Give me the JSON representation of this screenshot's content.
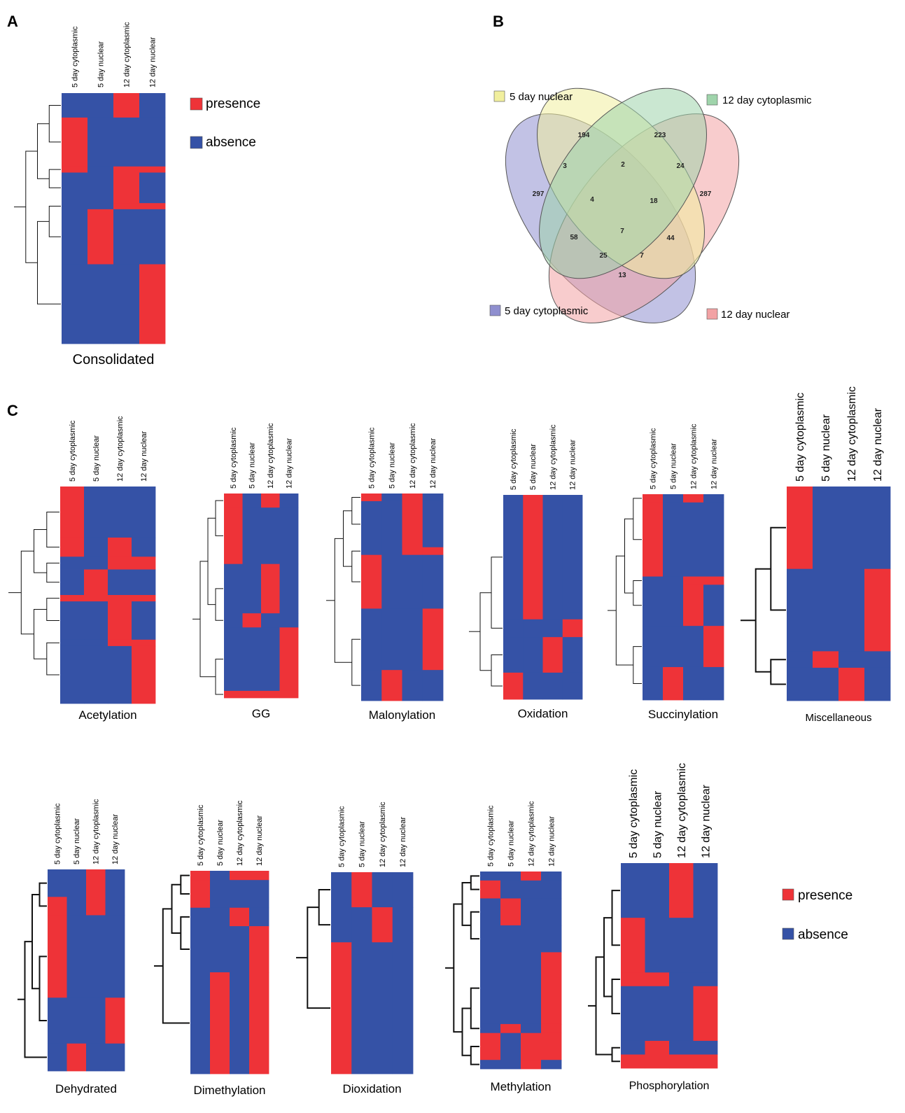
{
  "colors": {
    "presence": "#ee3338",
    "absence": "#3552a6",
    "venn_5day_cyto": "#8f8fcf",
    "venn_5day_nuc": "#f1ef9e",
    "venn_12day_cyto": "#9fd4ab",
    "venn_12day_nuc": "#f2a2a4"
  },
  "panels": {
    "A": "A",
    "B": "B",
    "C": "C"
  },
  "legend_top": {
    "presence": "presence",
    "absence": "absence"
  },
  "legend_bottom": {
    "presence": "presence",
    "absence": "absence"
  },
  "chart_data": [
    {
      "id": "consolidated",
      "type": "heatmap",
      "title": "Consolidated",
      "columns": [
        "5 day cytoplasmic",
        "5 day nuclear",
        "12 day cytoplasmic",
        "12 day nuclear"
      ],
      "blocks": [
        {
          "rows": 4,
          "values": [
            0,
            0,
            1,
            0
          ]
        },
        {
          "rows": 8,
          "values": [
            1,
            0,
            0,
            0
          ]
        },
        {
          "rows": 1,
          "values": [
            1,
            0,
            1,
            1
          ]
        },
        {
          "rows": 5,
          "values": [
            0,
            0,
            1,
            0
          ]
        },
        {
          "rows": 1,
          "values": [
            0,
            0,
            1,
            1
          ]
        },
        {
          "rows": 9,
          "values": [
            0,
            1,
            0,
            0
          ]
        },
        {
          "rows": 13,
          "values": [
            0,
            0,
            0,
            1
          ]
        }
      ]
    },
    {
      "id": "venn",
      "type": "venn",
      "sets": [
        "5 day cytoplasmic",
        "5 day nuclear",
        "12 day cytoplasmic",
        "12 day nuclear"
      ],
      "regions": [
        {
          "sets": [
            "5 day cytoplasmic"
          ],
          "value": 297
        },
        {
          "sets": [
            "5 day nuclear"
          ],
          "value": 194
        },
        {
          "sets": [
            "12 day cytoplasmic"
          ],
          "value": 223
        },
        {
          "sets": [
            "12 day nuclear"
          ],
          "value": 287
        },
        {
          "sets": [
            "5 day cytoplasmic",
            "5 day nuclear"
          ],
          "value": 3
        },
        {
          "sets": [
            "5 day nuclear",
            "12 day cytoplasmic"
          ],
          "value": 2
        },
        {
          "sets": [
            "12 day cytoplasmic",
            "12 day nuclear"
          ],
          "value": 24
        },
        {
          "sets": [
            "5 day cytoplasmic",
            "5 day nuclear",
            "12 day cytoplasmic"
          ],
          "value": 4
        },
        {
          "sets": [
            "5 day nuclear",
            "12 day cytoplasmic",
            "12 day nuclear"
          ],
          "value": 18
        },
        {
          "sets": [
            "5 day cytoplasmic",
            "5 day nuclear",
            "12 day cytoplasmic",
            "12 day nuclear"
          ],
          "value": 7
        },
        {
          "sets": [
            "5 day cytoplasmic",
            "12 day cytoplasmic"
          ],
          "value": 58
        },
        {
          "sets": [
            "5 day nuclear",
            "12 day nuclear"
          ],
          "value": 44
        },
        {
          "sets": [
            "5 day cytoplasmic",
            "12 day cytoplasmic",
            "12 day nuclear"
          ],
          "value": 25
        },
        {
          "sets": [
            "5 day cytoplasmic",
            "5 day nuclear",
            "12 day nuclear"
          ],
          "value": 7
        },
        {
          "sets": [
            "5 day cytoplasmic",
            "12 day nuclear"
          ],
          "value": 13
        }
      ]
    },
    {
      "id": "acetylation",
      "type": "heatmap",
      "title": "Acetylation",
      "columns": [
        "5 day cytoplasmic",
        "5 day nuclear",
        "12 day cytoplasmic",
        "12 day nuclear"
      ],
      "blocks": [
        {
          "rows": 8,
          "values": [
            1,
            0,
            0,
            0
          ]
        },
        {
          "rows": 3,
          "values": [
            1,
            0,
            1,
            0
          ]
        },
        {
          "rows": 2,
          "values": [
            0,
            0,
            1,
            1
          ]
        },
        {
          "rows": 4,
          "values": [
            0,
            1,
            0,
            0
          ]
        },
        {
          "rows": 1,
          "values": [
            1,
            1,
            1,
            1
          ]
        },
        {
          "rows": 6,
          "values": [
            0,
            0,
            1,
            0
          ]
        },
        {
          "rows": 1,
          "values": [
            0,
            0,
            1,
            1
          ]
        },
        {
          "rows": 9,
          "values": [
            0,
            0,
            0,
            1
          ]
        }
      ]
    },
    {
      "id": "gg",
      "type": "heatmap",
      "title": "GG",
      "columns": [
        "5 day cytoplasmic",
        "5 day nuclear",
        "12 day cytoplasmic",
        "12 day nuclear"
      ],
      "blocks": [
        {
          "rows": 2,
          "values": [
            1,
            0,
            1,
            0
          ]
        },
        {
          "rows": 8,
          "values": [
            1,
            0,
            0,
            0
          ]
        },
        {
          "rows": 7,
          "values": [
            0,
            0,
            1,
            0
          ]
        },
        {
          "rows": 2,
          "values": [
            0,
            1,
            0,
            0
          ]
        },
        {
          "rows": 9,
          "values": [
            0,
            0,
            0,
            1
          ]
        },
        {
          "rows": 1,
          "values": [
            1,
            1,
            1,
            1
          ]
        }
      ]
    },
    {
      "id": "malonylation",
      "type": "heatmap",
      "title": "Malonylation",
      "columns": [
        "5 day cytoplasmic",
        "5 day nuclear",
        "12 day cytoplasmic",
        "12 day nuclear"
      ],
      "blocks": [
        {
          "rows": 1,
          "values": [
            1,
            0,
            1,
            0
          ]
        },
        {
          "rows": 6,
          "values": [
            0,
            0,
            1,
            0
          ]
        },
        {
          "rows": 1,
          "values": [
            0,
            0,
            1,
            1
          ]
        },
        {
          "rows": 7,
          "values": [
            1,
            0,
            0,
            0
          ]
        },
        {
          "rows": 8,
          "values": [
            0,
            0,
            0,
            1
          ]
        },
        {
          "rows": 4,
          "values": [
            0,
            1,
            0,
            0
          ]
        }
      ]
    },
    {
      "id": "oxidation",
      "type": "heatmap",
      "title": "Oxidation",
      "columns": [
        "5 day cytoplasmic",
        "5 day nuclear",
        "12 day cytoplasmic",
        "12 day nuclear"
      ],
      "blocks": [
        {
          "rows": 14,
          "values": [
            0,
            1,
            0,
            0
          ]
        },
        {
          "rows": 2,
          "values": [
            0,
            0,
            0,
            1
          ]
        },
        {
          "rows": 4,
          "values": [
            0,
            0,
            1,
            0
          ]
        },
        {
          "rows": 3,
          "values": [
            1,
            0,
            0,
            0
          ]
        }
      ]
    },
    {
      "id": "succinylation",
      "type": "heatmap",
      "title": "Succinylation",
      "columns": [
        "5 day cytoplasmic",
        "5 day nuclear",
        "12 day cytoplasmic",
        "12 day nuclear"
      ],
      "blocks": [
        {
          "rows": 1,
          "values": [
            1,
            0,
            1,
            0
          ]
        },
        {
          "rows": 9,
          "values": [
            1,
            0,
            0,
            0
          ]
        },
        {
          "rows": 1,
          "values": [
            0,
            0,
            1,
            1
          ]
        },
        {
          "rows": 5,
          "values": [
            0,
            0,
            1,
            0
          ]
        },
        {
          "rows": 5,
          "values": [
            0,
            0,
            0,
            1
          ]
        },
        {
          "rows": 4,
          "values": [
            0,
            1,
            0,
            0
          ]
        }
      ]
    },
    {
      "id": "miscellaneous",
      "type": "heatmap",
      "title": "Miscellaneous",
      "columns": [
        "5 day cytoplasmic",
        "5 day nuclear",
        "12 day cytoplasmic",
        "12 day nuclear"
      ],
      "blocks": [
        {
          "rows": 5,
          "values": [
            1,
            0,
            0,
            0
          ]
        },
        {
          "rows": 5,
          "values": [
            0,
            0,
            0,
            1
          ]
        },
        {
          "rows": 1,
          "values": [
            0,
            1,
            0,
            0
          ]
        },
        {
          "rows": 2,
          "values": [
            0,
            0,
            1,
            0
          ]
        }
      ]
    },
    {
      "id": "dehydrated",
      "type": "heatmap",
      "title": "Dehydrated",
      "columns": [
        "5 day cytoplasmic",
        "5 day nuclear",
        "12 day cytoplasmic",
        "12 day nuclear"
      ],
      "blocks": [
        {
          "rows": 3,
          "values": [
            0,
            0,
            1,
            0
          ]
        },
        {
          "rows": 2,
          "values": [
            1,
            0,
            1,
            0
          ]
        },
        {
          "rows": 9,
          "values": [
            1,
            0,
            0,
            0
          ]
        },
        {
          "rows": 5,
          "values": [
            0,
            0,
            0,
            1
          ]
        },
        {
          "rows": 3,
          "values": [
            0,
            1,
            0,
            0
          ]
        }
      ]
    },
    {
      "id": "dimethylation",
      "type": "heatmap",
      "title": "Dimethylation",
      "columns": [
        "5 day cytoplasmic",
        "5 day nuclear",
        "12 day cytoplasmic",
        "12 day nuclear"
      ],
      "blocks": [
        {
          "rows": 1,
          "values": [
            1,
            0,
            1,
            1
          ]
        },
        {
          "rows": 3,
          "values": [
            1,
            0,
            0,
            0
          ]
        },
        {
          "rows": 2,
          "values": [
            0,
            0,
            1,
            0
          ]
        },
        {
          "rows": 5,
          "values": [
            0,
            0,
            0,
            1
          ]
        },
        {
          "rows": 11,
          "values": [
            0,
            1,
            0,
            1
          ]
        }
      ]
    },
    {
      "id": "dioxidation",
      "type": "heatmap",
      "title": "Dioxidation",
      "columns": [
        "5 day cytoplasmic",
        "5 day nuclear",
        "12 day cytoplasmic",
        "12 day nuclear"
      ],
      "blocks": [
        {
          "rows": 4,
          "values": [
            0,
            1,
            0,
            0
          ]
        },
        {
          "rows": 4,
          "values": [
            0,
            0,
            1,
            0
          ]
        },
        {
          "rows": 15,
          "values": [
            1,
            0,
            0,
            0
          ]
        }
      ]
    },
    {
      "id": "methylation",
      "type": "heatmap",
      "title": "Methylation",
      "columns": [
        "5 day cytoplasmic",
        "5 day nuclear",
        "12 day cytoplasmic",
        "12 day nuclear"
      ],
      "blocks": [
        {
          "rows": 1,
          "values": [
            0,
            0,
            1,
            0
          ]
        },
        {
          "rows": 2,
          "values": [
            1,
            0,
            0,
            0
          ]
        },
        {
          "rows": 3,
          "values": [
            0,
            1,
            0,
            0
          ]
        },
        {
          "rows": 3,
          "values": [
            0,
            0,
            0,
            0
          ]
        },
        {
          "rows": 8,
          "values": [
            0,
            0,
            0,
            1
          ]
        },
        {
          "rows": 1,
          "values": [
            0,
            1,
            0,
            1
          ]
        },
        {
          "rows": 3,
          "values": [
            1,
            0,
            1,
            1
          ]
        },
        {
          "rows": 1,
          "values": [
            0,
            0,
            1,
            0
          ]
        }
      ]
    },
    {
      "id": "phosphorylation",
      "type": "heatmap",
      "title": "Phosphorylation",
      "columns": [
        "5 day cytoplasmic",
        "5 day nuclear",
        "12 day cytoplasmic",
        "12 day nuclear"
      ],
      "blocks": [
        {
          "rows": 4,
          "values": [
            0,
            0,
            1,
            0
          ]
        },
        {
          "rows": 4,
          "values": [
            1,
            0,
            0,
            0
          ]
        },
        {
          "rows": 1,
          "values": [
            1,
            1,
            0,
            0
          ]
        },
        {
          "rows": 4,
          "values": [
            0,
            0,
            0,
            1
          ]
        },
        {
          "rows": 1,
          "values": [
            0,
            1,
            0,
            0
          ]
        },
        {
          "rows": 1,
          "values": [
            1,
            1,
            1,
            1
          ]
        }
      ]
    }
  ]
}
